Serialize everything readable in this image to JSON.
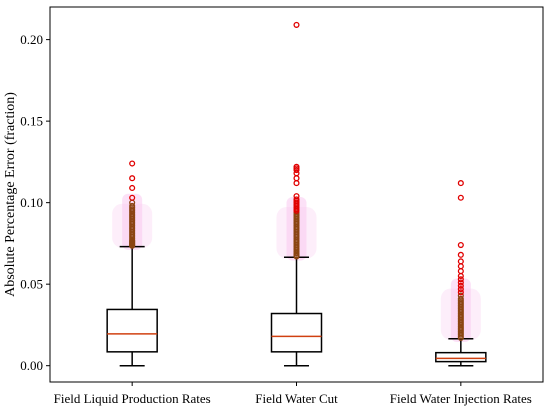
{
  "chart_data": {
    "type": "box",
    "title": "",
    "xlabel": "",
    "ylabel": "Absolute Percentage Error (fraction)",
    "ylim": [
      -0.01,
      0.22
    ],
    "yticks": [
      0.0,
      0.05,
      0.1,
      0.15,
      0.2
    ],
    "ytick_labels": [
      "0.00",
      "0.05",
      "0.10",
      "0.15",
      "0.20"
    ],
    "grid": false,
    "legend": "none",
    "colors": {
      "box": "#000000",
      "median": "#d04010",
      "outlier_edge": "#e00000",
      "outlier_dense": "#8b4513",
      "outlier_glow": "#f9c8f0"
    },
    "categories": [
      "Field Liquid Production Rates",
      "Field Water Cut",
      "Field Water Injection Rates"
    ],
    "boxes": [
      {
        "category": "Field Liquid Production Rates",
        "whisker_low": 0.0,
        "q1": 0.0085,
        "median": 0.0195,
        "q3": 0.0345,
        "whisker_high": 0.073,
        "outliers": [
          0.0735,
          0.074,
          0.0745,
          0.075,
          0.0755,
          0.076,
          0.0765,
          0.077,
          0.078,
          0.079,
          0.08,
          0.081,
          0.082,
          0.083,
          0.084,
          0.085,
          0.086,
          0.087,
          0.088,
          0.089,
          0.09,
          0.091,
          0.092,
          0.093,
          0.094,
          0.095,
          0.096,
          0.097,
          0.098,
          0.1,
          0.103,
          0.109,
          0.115,
          0.124
        ]
      },
      {
        "category": "Field Water Cut",
        "whisker_low": 0.0,
        "q1": 0.0085,
        "median": 0.018,
        "q3": 0.032,
        "whisker_high": 0.0665,
        "outliers": [
          0.067,
          0.0675,
          0.068,
          0.069,
          0.07,
          0.071,
          0.072,
          0.073,
          0.074,
          0.075,
          0.076,
          0.077,
          0.078,
          0.079,
          0.08,
          0.081,
          0.082,
          0.083,
          0.084,
          0.085,
          0.086,
          0.087,
          0.088,
          0.089,
          0.09,
          0.091,
          0.092,
          0.093,
          0.094,
          0.095,
          0.096,
          0.097,
          0.098,
          0.099,
          0.1,
          0.101,
          0.102,
          0.104,
          0.112,
          0.115,
          0.118,
          0.12,
          0.121,
          0.122,
          0.209
        ]
      },
      {
        "category": "Field Water Injection Rates",
        "whisker_low": 0.0,
        "q1": 0.0025,
        "median": 0.0045,
        "q3": 0.008,
        "whisker_high": 0.0165,
        "outliers": [
          0.017,
          0.018,
          0.019,
          0.02,
          0.021,
          0.022,
          0.023,
          0.024,
          0.025,
          0.026,
          0.027,
          0.028,
          0.029,
          0.03,
          0.031,
          0.032,
          0.033,
          0.034,
          0.035,
          0.036,
          0.037,
          0.038,
          0.039,
          0.04,
          0.041,
          0.043,
          0.045,
          0.047,
          0.049,
          0.051,
          0.053,
          0.055,
          0.058,
          0.061,
          0.064,
          0.068,
          0.074,
          0.103,
          0.112
        ]
      }
    ]
  }
}
